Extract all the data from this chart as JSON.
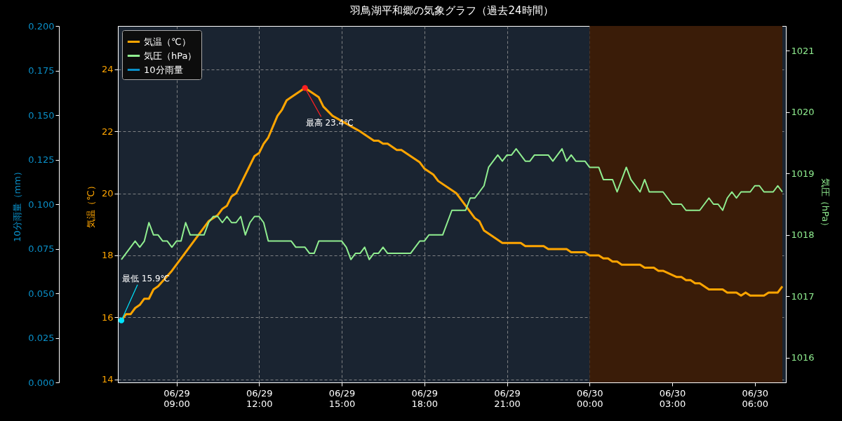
{
  "chart_data": {
    "type": "line",
    "title": "羽鳥湖平和郷の気象グラフ（過去24時間）",
    "ylabel": "気温（℃）",
    "y2label": "気圧（hPa）",
    "y3label": "10分雨量（mm）",
    "xlim": [
      "--06-29T07:00",
      "--06-30T07:00"
    ],
    "xticks": [
      {
        "value": "--06-29T09:00",
        "label": "06/29\n09:00"
      },
      {
        "value": "--06-29T12:00",
        "label": "06/29\n12:00"
      },
      {
        "value": "--06-29T15:00",
        "label": "06/29\n15:00"
      },
      {
        "value": "--06-29T18:00",
        "label": "06/29\n18:00"
      },
      {
        "value": "--06-29T21:00",
        "label": "06/29\n21:00"
      },
      {
        "value": "--06-30T00:00",
        "label": "06/30\n00:00"
      },
      {
        "value": "--06-30T03:00",
        "label": "06/30\n03:00"
      },
      {
        "value": "--06-30T06:00",
        "label": "06/30\n06:00"
      }
    ],
    "ylim": [
      13.9,
      25.4
    ],
    "yticks": [
      14,
      16,
      18,
      20,
      22,
      24
    ],
    "y2lim": [
      1015.6,
      1021.4
    ],
    "y2ticks": [
      1016,
      1017,
      1018,
      1019,
      1020,
      1021
    ],
    "y3lim": [
      0,
      0.2
    ],
    "y3ticks": [
      {
        "value": 0,
        "label": "0.000"
      },
      {
        "value": 0.025,
        "label": "0.025"
      },
      {
        "value": 0.05,
        "label": "0.050"
      },
      {
        "value": 0.075,
        "label": "0.075"
      },
      {
        "value": 0.1,
        "label": "0.100"
      },
      {
        "value": 0.125,
        "label": "0.125"
      },
      {
        "value": 0.15,
        "label": "0.150"
      },
      {
        "value": 0.175,
        "label": "0.175"
      },
      {
        "value": 0.2,
        "label": "0.200"
      }
    ],
    "grid": true,
    "legend": "top left",
    "bands": [
      {
        "axis": "x",
        "from": "--06-30T00:00",
        "to": "--06-30T07:00",
        "color": "#3a1c08"
      }
    ],
    "annotations": [
      {
        "text": "最高 23.4℃",
        "x": "--06-29T13:40",
        "y": 23.4
      },
      {
        "text": "最低 15.9℃",
        "x": "--06-29T07:00",
        "y": 15.9
      }
    ],
    "series": [
      {
        "name": "気温（℃）",
        "color": "#ffa500",
        "x": [
          "--06-29T07:00",
          "--06-29T07:10",
          "--06-29T07:20",
          "--06-29T07:30",
          "--06-29T07:40",
          "--06-29T07:50",
          "--06-29T08:00",
          "--06-29T08:10",
          "--06-29T08:20",
          "--06-29T08:50",
          "--06-29T10:10",
          "--06-29T10:30",
          "--06-29T10:40",
          "--06-29T10:50",
          "--06-29T11:00",
          "--06-29T11:10",
          "--06-29T11:50",
          "--06-29T12:00",
          "--06-29T12:10",
          "--06-29T12:20",
          "--06-29T12:40",
          "--06-29T12:50",
          "--06-29T13:00",
          "--06-29T13:10",
          "--06-29T13:40",
          "--06-29T13:50",
          "--06-29T14:10",
          "--06-29T14:20",
          "--06-29T14:40",
          "--06-29T15:40",
          "--06-29T16:10",
          "--06-29T16:20",
          "--06-29T16:30",
          "--06-29T16:40",
          "--06-29T17:00",
          "--06-29T17:10",
          "--06-29T17:50",
          "--06-29T18:00",
          "--06-29T18:20",
          "--06-29T18:30",
          "--06-29T19:10",
          "--06-29T19:30",
          "--06-29T19:50",
          "--06-29T20:00",
          "--06-29T20:10",
          "--06-29T20:50",
          "--06-29T21:30",
          "--06-29T21:40",
          "--06-29T22:20",
          "--06-29T22:30",
          "--06-29T23:10",
          "--06-29T23:20",
          "--06-29T23:50",
          "--06-30T00:00",
          "--06-30T00:20",
          "--06-30T00:30",
          "--06-30T00:40",
          "--06-30T00:50",
          "--06-30T01:00",
          "--06-30T01:10",
          "--06-30T01:50",
          "--06-30T02:00",
          "--06-30T02:20",
          "--06-30T02:30",
          "--06-30T02:40",
          "--06-30T03:10",
          "--06-30T03:20",
          "--06-30T03:30",
          "--06-30T03:40",
          "--06-30T03:50",
          "--06-30T04:00",
          "--06-30T04:20",
          "--06-30T04:50",
          "--06-30T05:00",
          "--06-30T05:20",
          "--06-30T05:30",
          "--06-30T05:40",
          "--06-30T05:50",
          "--06-30T06:20",
          "--06-30T06:30",
          "--06-30T06:50",
          "--06-30T07:00"
        ],
        "values": [
          15.9,
          16.1,
          16.1,
          16.3,
          16.4,
          16.6,
          16.6,
          16.9,
          17.0,
          17.5,
          19.1,
          19.3,
          19.5,
          19.6,
          19.9,
          20.0,
          21.2,
          21.3,
          21.6,
          21.8,
          22.5,
          22.7,
          23.0,
          23.1,
          23.4,
          23.3,
          23.1,
          22.8,
          22.5,
          22.0,
          21.7,
          21.7,
          21.6,
          21.6,
          21.4,
          21.4,
          21.0,
          20.8,
          20.6,
          20.4,
          20.0,
          19.6,
          19.2,
          19.1,
          18.8,
          18.4,
          18.4,
          18.3,
          18.3,
          18.2,
          18.2,
          18.1,
          18.1,
          18.0,
          18.0,
          17.9,
          17.9,
          17.8,
          17.8,
          17.7,
          17.7,
          17.6,
          17.6,
          17.5,
          17.5,
          17.3,
          17.3,
          17.2,
          17.2,
          17.1,
          17.1,
          16.9,
          16.9,
          16.8,
          16.8,
          16.7,
          16.8,
          16.7,
          16.7,
          16.8,
          16.8,
          17.0
        ]
      },
      {
        "name": "気圧（hPa）",
        "axis": "y2",
        "color": "#90ee90",
        "x": [
          "--06-29T07:00",
          "--06-29T07:30",
          "--06-29T07:40",
          "--06-29T07:50",
          "--06-29T08:00",
          "--06-29T08:10",
          "--06-29T08:20",
          "--06-29T08:30",
          "--06-29T08:40",
          "--06-29T08:50",
          "--06-29T09:00",
          "--06-29T09:10",
          "--06-29T09:20",
          "--06-29T09:30",
          "--06-29T10:00",
          "--06-29T10:10",
          "--06-29T10:20",
          "--06-29T10:30",
          "--06-29T10:40",
          "--06-29T10:50",
          "--06-29T11:00",
          "--06-29T11:10",
          "--06-29T11:20",
          "--06-29T11:30",
          "--06-29T11:40",
          "--06-29T11:50",
          "--06-29T12:00",
          "--06-29T12:10",
          "--06-29T12:20",
          "--06-29T13:10",
          "--06-29T13:20",
          "--06-29T13:40",
          "--06-29T13:50",
          "--06-29T14:00",
          "--06-29T14:10",
          "--06-29T15:00",
          "--06-29T15:10",
          "--06-29T15:20",
          "--06-29T15:30",
          "--06-29T15:40",
          "--06-29T15:50",
          "--06-29T16:00",
          "--06-29T16:10",
          "--06-29T16:20",
          "--06-29T16:30",
          "--06-29T16:40",
          "--06-29T17:30",
          "--06-29T17:50",
          "--06-29T18:00",
          "--06-29T18:10",
          "--06-29T18:40",
          "--06-29T19:00",
          "--06-29T19:30",
          "--06-29T19:40",
          "--06-29T19:50",
          "--06-29T20:10",
          "--06-29T20:20",
          "--06-29T20:40",
          "--06-29T20:50",
          "--06-29T21:00",
          "--06-29T21:10",
          "--06-29T21:20",
          "--06-29T21:40",
          "--06-29T21:50",
          "--06-29T22:00",
          "--06-29T22:30",
          "--06-29T22:40",
          "--06-29T23:00",
          "--06-29T23:10",
          "--06-29T23:20",
          "--06-29T23:30",
          "--06-29T23:50",
          "--06-30T00:00",
          "--06-30T00:20",
          "--06-30T00:30",
          "--06-30T00:50",
          "--06-30T01:00",
          "--06-30T01:20",
          "--06-30T01:30",
          "--06-30T01:50",
          "--06-30T02:00",
          "--06-30T02:10",
          "--06-30T02:40",
          "--06-30T03:00",
          "--06-30T03:20",
          "--06-30T03:30",
          "--06-30T04:00",
          "--06-30T04:20",
          "--06-30T04:30",
          "--06-30T04:40",
          "--06-30T04:50",
          "--06-30T05:00",
          "--06-30T05:10",
          "--06-30T05:20",
          "--06-30T05:30",
          "--06-30T05:50",
          "--06-30T06:00",
          "--06-30T06:10",
          "--06-30T06:20",
          "--06-30T06:40",
          "--06-30T06:50",
          "--06-30T07:00"
        ],
        "values": [
          1017.6,
          1017.9,
          1017.8,
          1017.9,
          1018.2,
          1018.0,
          1018.0,
          1017.9,
          1017.9,
          1017.8,
          1017.9,
          1017.9,
          1018.2,
          1018.0,
          1018.0,
          1018.2,
          1018.3,
          1018.3,
          1018.2,
          1018.3,
          1018.2,
          1018.2,
          1018.3,
          1018.0,
          1018.2,
          1018.3,
          1018.3,
          1018.2,
          1017.9,
          1017.9,
          1017.8,
          1017.8,
          1017.7,
          1017.7,
          1017.9,
          1017.9,
          1017.8,
          1017.6,
          1017.7,
          1017.7,
          1017.8,
          1017.6,
          1017.7,
          1017.7,
          1017.8,
          1017.7,
          1017.7,
          1017.9,
          1017.9,
          1018.0,
          1018.0,
          1018.4,
          1018.4,
          1018.6,
          1018.6,
          1018.8,
          1019.1,
          1019.3,
          1019.2,
          1019.3,
          1019.3,
          1019.4,
          1019.2,
          1019.2,
          1019.3,
          1019.3,
          1019.2,
          1019.4,
          1019.2,
          1019.3,
          1019.2,
          1019.2,
          1019.1,
          1019.1,
          1018.9,
          1018.9,
          1018.7,
          1019.1,
          1018.9,
          1018.7,
          1018.9,
          1018.7,
          1018.7,
          1018.5,
          1018.5,
          1018.4,
          1018.4,
          1018.6,
          1018.5,
          1018.5,
          1018.4,
          1018.6,
          1018.7,
          1018.6,
          1018.7,
          1018.7,
          1018.8,
          1018.8,
          1018.7,
          1018.7,
          1018.8,
          1018.7
        ]
      },
      {
        "name": "10分雨量",
        "type": "bar",
        "axis": "y3",
        "color": "#0a8fc8",
        "x": [
          "--06-29T07:00",
          "--06-29T08:00",
          "--06-29T09:00",
          "--06-29T10:00",
          "--06-29T11:00",
          "--06-29T12:00",
          "--06-29T13:00",
          "--06-29T14:00",
          "--06-29T15:00",
          "--06-29T16:00",
          "--06-29T17:00",
          "--06-29T18:00",
          "--06-29T19:00",
          "--06-29T20:00",
          "--06-29T21:00",
          "--06-29T22:00",
          "--06-29T23:00",
          "--06-30T00:00",
          "--06-30T01:00",
          "--06-30T02:00",
          "--06-30T03:00",
          "--06-30T04:00",
          "--06-30T05:00",
          "--06-30T06:00",
          "--06-30T07:00"
        ],
        "values": [
          0,
          0,
          0,
          0,
          0,
          0,
          0,
          0,
          0,
          0,
          0,
          0,
          0,
          0,
          0,
          0,
          0,
          0,
          0,
          0,
          0,
          0,
          0,
          0,
          0
        ]
      }
    ]
  }
}
